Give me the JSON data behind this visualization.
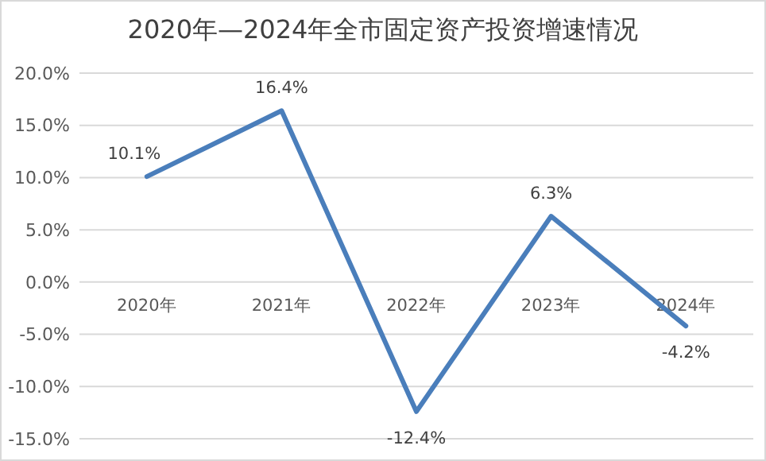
{
  "chart_data": {
    "type": "line",
    "title": "2020年—2024年全市固定资产投资增速情况",
    "categories": [
      "2020年",
      "2021年",
      "2022年",
      "2023年",
      "2024年"
    ],
    "series": [
      {
        "color": "#4a7ebb",
        "values": [
          10.1,
          16.4,
          -12.4,
          6.3,
          -4.2
        ],
        "value_labels": [
          "10.1%",
          "16.4%",
          "-12.4%",
          "6.3%",
          "-4.2%"
        ]
      }
    ],
    "ylim": [
      -15,
      20
    ],
    "yticks": [
      {
        "value": -15,
        "label": "-15.0%"
      },
      {
        "value": -10,
        "label": "-10.0%"
      },
      {
        "value": -5,
        "label": "-5.0%"
      },
      {
        "value": 0,
        "label": "0.0%"
      },
      {
        "value": 5,
        "label": "5.0%"
      },
      {
        "value": 10,
        "label": "10.0%"
      },
      {
        "value": 15,
        "label": "15.0%"
      },
      {
        "value": 20,
        "label": "20.0%"
      }
    ],
    "grid": "y",
    "marker": "none",
    "line_style": "solid"
  }
}
